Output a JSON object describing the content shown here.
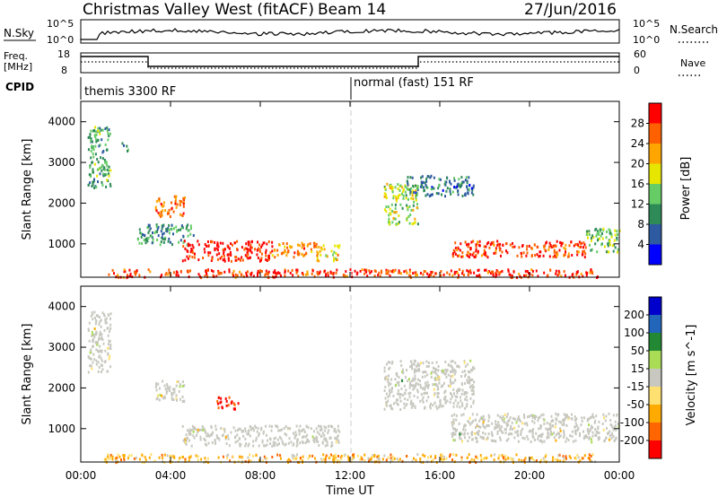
{
  "header": {
    "station": "Christmas Valley West (fitACF)",
    "beam": "Beam 14",
    "date": "27/Jun/2016"
  },
  "top_panels": {
    "nsky_label": "N.Sky",
    "nsky_ticks": [
      "10^5",
      "10^0"
    ],
    "nsearch_label": "N.Search",
    "freq_label_1": "Freq.",
    "freq_label_2": "[MHz]",
    "freq_ticks": [
      "18",
      "8"
    ],
    "nave_label": "Nave",
    "nave_ticks": [
      "60",
      "0"
    ],
    "cpid_label": "CPID",
    "cpid_segments": [
      "themis 3300 RF",
      "normal (fast) 151 RF"
    ]
  },
  "colors": {
    "power_scale": [
      "#0000ff",
      "#2d5aa0",
      "#2e8b57",
      "#66cd66",
      "#e6e600",
      "#ffa500",
      "#ff6000",
      "#ff0000"
    ],
    "velocity_scale": [
      "#ff0000",
      "#ff6600",
      "#ffaa00",
      "#ffe070",
      "#c8c8c0",
      "#aadd55",
      "#228833",
      "#2266bb",
      "#0000cc"
    ],
    "ground_scatter": "#c8c8c0",
    "frame": "#000000",
    "midnight_line": "#cccccc"
  },
  "chart_data": [
    {
      "type": "heatmap",
      "panel": "power",
      "x": [
        0,
        1,
        2,
        3,
        4,
        5,
        6,
        7,
        8,
        9,
        10,
        11,
        12,
        13,
        14,
        15,
        16,
        17,
        18,
        19,
        20,
        21,
        22,
        23,
        24
      ],
      "xticks": [
        "00:00",
        "04:00",
        "08:00",
        "12:00",
        "16:00",
        "20:00",
        "00:00"
      ],
      "xlabel": "Time UT",
      "ylabel": "Slant Range [km]",
      "yticks": [
        "1000",
        "2000",
        "3000",
        "4000"
      ],
      "ylim": [
        180,
        4500
      ],
      "colorbar_label": "Power [dB]",
      "colorbar_ticks": [
        "4",
        "8",
        "12",
        "16",
        "20",
        "24",
        "28"
      ],
      "colorbar_range": [
        0,
        32
      ],
      "regions": [
        {
          "t": [
            0.3,
            1.3
          ],
          "r": [
            2400,
            3900
          ],
          "power": 12
        },
        {
          "t": [
            1.8,
            2.1
          ],
          "r": [
            3300,
            3500
          ],
          "power": 8
        },
        {
          "t": [
            3.3,
            4.6
          ],
          "r": [
            1700,
            2200
          ],
          "power": 26
        },
        {
          "t": [
            2.5,
            5.0
          ],
          "r": [
            1000,
            1500
          ],
          "power": 10
        },
        {
          "t": [
            4.5,
            8.5
          ],
          "r": [
            600,
            1100
          ],
          "power": 30
        },
        {
          "t": [
            8.5,
            10.5
          ],
          "r": [
            700,
            1050
          ],
          "power": 24
        },
        {
          "t": [
            10.5,
            11.5
          ],
          "r": [
            600,
            1000
          ],
          "power": 20
        },
        {
          "t": [
            13.5,
            15.0
          ],
          "r": [
            1500,
            2500
          ],
          "power": 16
        },
        {
          "t": [
            14.5,
            17.5
          ],
          "r": [
            2200,
            2700
          ],
          "power": 8
        },
        {
          "t": [
            16.5,
            22.5
          ],
          "r": [
            700,
            1100
          ],
          "power": 28
        },
        {
          "t": [
            22.5,
            24.0
          ],
          "r": [
            800,
            1400
          ],
          "power": 14
        },
        {
          "t": [
            1.0,
            23.0
          ],
          "r": [
            200,
            400
          ],
          "power": 28
        }
      ]
    },
    {
      "type": "heatmap",
      "panel": "velocity",
      "x": [
        0,
        1,
        2,
        3,
        4,
        5,
        6,
        7,
        8,
        9,
        10,
        11,
        12,
        13,
        14,
        15,
        16,
        17,
        18,
        19,
        20,
        21,
        22,
        23,
        24
      ],
      "xticks": [
        "00:00",
        "04:00",
        "08:00",
        "12:00",
        "16:00",
        "20:00",
        "00:00"
      ],
      "xlabel": "Time UT",
      "ylabel": "Slant Range [km]",
      "yticks": [
        "1000",
        "2000",
        "3000",
        "4000"
      ],
      "ylim": [
        180,
        4500
      ],
      "colorbar_label": "Velocity [m s^-1]",
      "colorbar_ticks": [
        "-200",
        "-100",
        "-50",
        "-15",
        "15",
        "50",
        "100",
        "200"
      ],
      "colorbar_range": [
        -250,
        250
      ],
      "regions": [
        {
          "t": [
            0.3,
            1.3
          ],
          "r": [
            2400,
            3900
          ],
          "velocity": 0
        },
        {
          "t": [
            3.3,
            4.6
          ],
          "r": [
            1700,
            2200
          ],
          "velocity": 0
        },
        {
          "t": [
            6.0,
            7.0
          ],
          "r": [
            1500,
            1800
          ],
          "velocity": -200
        },
        {
          "t": [
            4.5,
            11.5
          ],
          "r": [
            600,
            1100
          ],
          "velocity": 0
        },
        {
          "t": [
            13.5,
            17.5
          ],
          "r": [
            1500,
            2700
          ],
          "velocity": 0
        },
        {
          "t": [
            16.5,
            24.0
          ],
          "r": [
            700,
            1400
          ],
          "velocity": 0
        },
        {
          "t": [
            1.0,
            23.0
          ],
          "r": [
            200,
            400
          ],
          "velocity": -60
        }
      ]
    }
  ]
}
